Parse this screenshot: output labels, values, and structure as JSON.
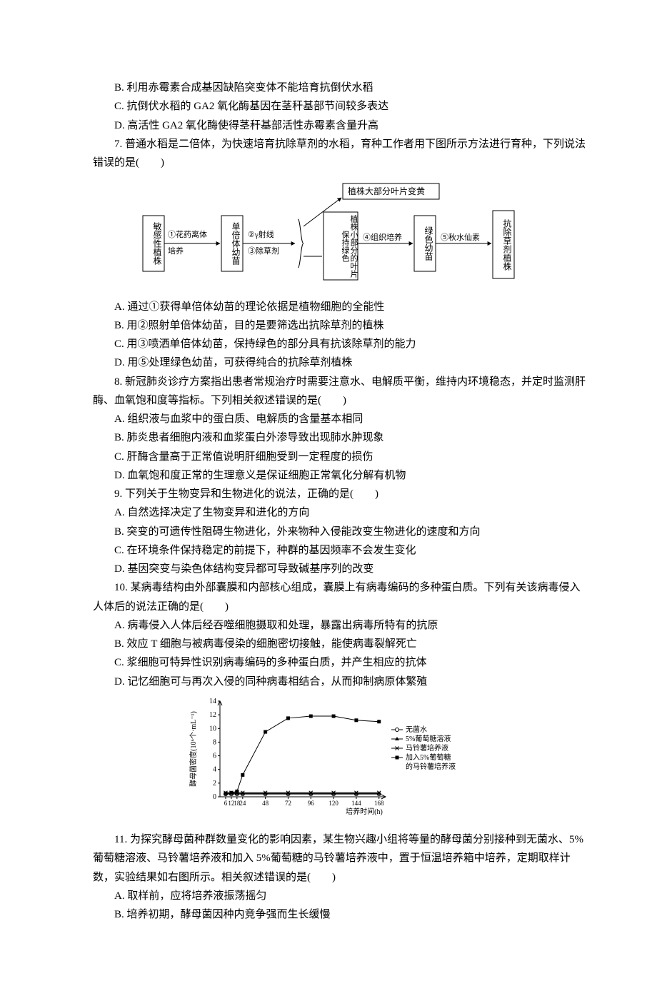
{
  "q6": {
    "optB": "B. 利用赤霉素合成基因缺陷突变体不能培育抗倒伏水稻",
    "optC": "C. 抗倒伏水稻的 GA2 氧化酶基因在茎秆基部节间较多表达",
    "optD": "D. 高活性 GA2 氧化酶使得茎秆基部活性赤霉素含量升高"
  },
  "q7": {
    "stem": "7. 普通水稻是二倍体，为快速培育抗除草剂的水稻，育种工作者用下图所示方法进行育种，下列说法错误的是(　　)",
    "flow": {
      "box1": "敏感性植株",
      "step1a": "①花药离体",
      "step1b": "培养",
      "box2": "单倍体幼苗",
      "step2": "②γ射线",
      "step3": "③除草剂",
      "split_top": "植株大部分叶片变黄",
      "split_bottom": "植株小部分的叶片保持绿色",
      "step4": "④组织培养",
      "box4": "绿色幼苗",
      "step5": "⑤秋水仙素",
      "box5": "抗除草剂植株",
      "box_color": "#000000",
      "text_color": "#000000",
      "fontsize": 12
    },
    "optA": "A. 通过①获得单倍体幼苗的理论依据是植物细胞的全能性",
    "optB": "B. 用②照射单倍体幼苗，目的是要筛选出抗除草剂的植株",
    "optC": "C. 用③喷洒单倍体幼苗，保持绿色的部分具有抗该除草剂的能力",
    "optD": "D. 用⑤处理绿色幼苗，可获得纯合的抗除草剂植株"
  },
  "q8": {
    "stem": "8. 新冠肺炎诊疗方案指出患者常规治疗时需要注意水、电解质平衡，维持内环境稳态，并定时监测肝酶、血氧饱和度等指标。下列相关叙述错误的是(　　)",
    "optA": "A. 组织液与血浆中的蛋白质、电解质的含量基本相同",
    "optB": "B. 肺炎患者细胞内液和血浆蛋白外渗导致出现肺水肿现象",
    "optC": "C. 肝酶含量高于正常值说明肝细胞受到一定程度的损伤",
    "optD": "D. 血氧饱和度正常的生理意义是保证细胞正常氧化分解有机物"
  },
  "q9": {
    "stem": "9. 下列关于生物变异和生物进化的说法，正确的是(　　)",
    "optA": "A. 自然选择决定了生物变异和进化的方向",
    "optB": "B. 突变的可遗传性阻碍生物进化，外来物种入侵能改变生物进化的速度和方向",
    "optC": "C. 在环境条件保持稳定的前提下，种群的基因频率不会发生变化",
    "optD": "D. 基因突变与染色体结构变异都可导致碱基序列的改变"
  },
  "q10": {
    "stem": "10. 某病毒结构由外部囊膜和内部核心组成，囊膜上有病毒编码的多种蛋白质。下列有关该病毒侵入人体后的说法正确的是(　　)",
    "optA": "A. 病毒侵入人体后经吞噬细胞摄取和处理，暴露出病毒所特有的抗原",
    "optB": "B. 效应 T 细胞与被病毒侵染的细胞密切接触，能使病毒裂解死亡",
    "optC": "C. 浆细胞可特异性识别病毒编码的多种蛋白质，并产生相应的抗体",
    "optD": "D. 记忆细胞可与再次入侵的同种病毒相结合，从而抑制病原体繁殖"
  },
  "q11": {
    "chart": {
      "type": "line",
      "xlabel": "培养时间(h)",
      "ylabel": "酵母菌密度(10⁶个·mL⁻¹)",
      "label_fontsize": 11,
      "xlim": [
        0,
        175
      ],
      "ylim": [
        0,
        14
      ],
      "yticks": [
        0,
        2,
        4,
        6,
        8,
        10,
        12,
        14
      ],
      "xticks": [
        6,
        12,
        18,
        24,
        48,
        72,
        96,
        120,
        144,
        168
      ],
      "background_color": "#ffffff",
      "axis_color": "#000000",
      "series": [
        {
          "name": "无菌水",
          "marker": "open-circle",
          "line": "solid",
          "color": "#000000",
          "points": [
            [
              6,
              0.4
            ],
            [
              12,
              0.4
            ],
            [
              18,
              0.4
            ],
            [
              24,
              0.4
            ],
            [
              48,
              0.4
            ],
            [
              72,
              0.4
            ],
            [
              96,
              0.4
            ],
            [
              120,
              0.4
            ],
            [
              144,
              0.4
            ],
            [
              168,
              0.4
            ]
          ]
        },
        {
          "name": "5%葡萄糖溶液",
          "marker": "triangle",
          "line": "solid",
          "color": "#000000",
          "points": [
            [
              6,
              0.5
            ],
            [
              12,
              0.5
            ],
            [
              18,
              0.5
            ],
            [
              24,
              0.5
            ],
            [
              48,
              0.5
            ],
            [
              72,
              0.5
            ],
            [
              96,
              0.5
            ],
            [
              120,
              0.5
            ],
            [
              144,
              0.5
            ],
            [
              168,
              0.5
            ]
          ]
        },
        {
          "name": "马铃薯培养液",
          "marker": "x",
          "line": "solid",
          "color": "#000000",
          "points": [
            [
              6,
              0.6
            ],
            [
              12,
              0.6
            ],
            [
              18,
              0.6
            ],
            [
              24,
              0.6
            ],
            [
              48,
              0.6
            ],
            [
              72,
              0.6
            ],
            [
              96,
              0.6
            ],
            [
              120,
              0.6
            ],
            [
              144,
              0.6
            ],
            [
              168,
              0.6
            ]
          ]
        },
        {
          "name": "加入5%葡萄糖的马铃薯培养液",
          "marker": "square",
          "line": "solid",
          "color": "#000000",
          "points": [
            [
              6,
              0.5
            ],
            [
              12,
              0.6
            ],
            [
              18,
              0.8
            ],
            [
              24,
              3.2
            ],
            [
              48,
              9.5
            ],
            [
              72,
              11.5
            ],
            [
              96,
              11.8
            ],
            [
              120,
              11.8
            ],
            [
              144,
              11.2
            ],
            [
              168,
              11.0
            ]
          ]
        }
      ],
      "legend": [
        {
          "marker": "open-circle",
          "label": "无菌水"
        },
        {
          "marker": "triangle",
          "label": "5%葡萄糖溶液"
        },
        {
          "marker": "x",
          "label": "马铃薯培养液"
        },
        {
          "marker": "square",
          "label": "加入5%葡萄糖"
        },
        {
          "marker": "",
          "label": "的马铃薯培养液"
        }
      ]
    },
    "stem": "11. 为探究酵母菌种群数量变化的影响因素，某生物兴趣小组将等量的酵母菌分别接种到无菌水、5%葡萄糖溶液、马铃薯培养液和加入 5%葡萄糖的马铃薯培养液中，置于恒温培养箱中培养，定期取样计数，实验结果如右图所示。相关叙述错误的是(　　)",
    "optA": "A.  取样前，应将培养液振荡摇匀",
    "optB": "B.  培养初期，酵母菌因种内竞争强而生长缓慢"
  }
}
